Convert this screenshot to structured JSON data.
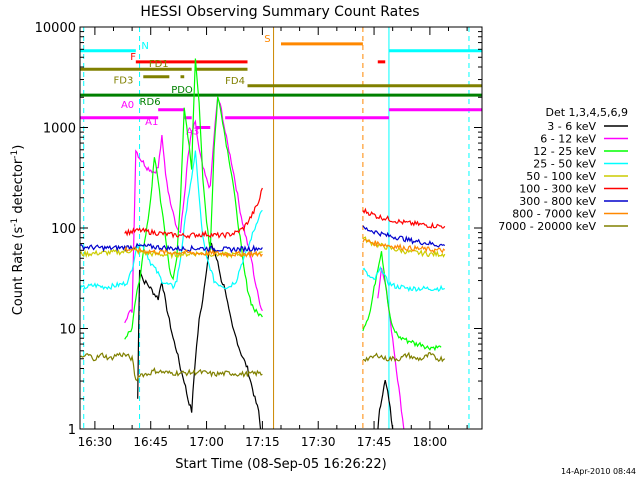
{
  "chart_data": {
    "type": "line",
    "title": "HESSI Observing Summary Count Rates",
    "xlabel": "Start Time (08-Sep-05 16:26:22)",
    "ylabel_main": "Count Rate (s",
    "ylabel_exp": "-1",
    "ylabel_tail": " detector",
    "ylabel_exp2": "-1",
    "ylabel_close": ")",
    "footer_date": "14-Apr-2010 08:44",
    "x_range_min": [
      0,
      108
    ],
    "y_range": [
      1,
      10000
    ],
    "y_scale": "log",
    "x_ticks": [
      {
        "min": 4,
        "label": "16:30"
      },
      {
        "min": 19,
        "label": "16:45"
      },
      {
        "min": 34,
        "label": "17:00"
      },
      {
        "min": 49,
        "label": "17:15"
      },
      {
        "min": 64,
        "label": "17:30"
      },
      {
        "min": 79,
        "label": "17:45"
      },
      {
        "min": 94,
        "label": "18:00"
      }
    ],
    "y_ticks": [
      {
        "value": 1,
        "label": "1"
      },
      {
        "value": 10,
        "label": "10"
      },
      {
        "value": 100,
        "label": "100"
      },
      {
        "value": 1000,
        "label": "1000"
      },
      {
        "value": 10000,
        "label": "10000"
      }
    ],
    "legend_title": "Det 1,3,4,5,6,9",
    "legend_placement": "right",
    "series": [
      {
        "name": "3 - 6 keV",
        "color": "#000000",
        "x": [
          15.5,
          16,
          17,
          18,
          19,
          20,
          21,
          22,
          23,
          24,
          25,
          26,
          27,
          28,
          29,
          30,
          31,
          32,
          33,
          34,
          35,
          36,
          37,
          38,
          39,
          40,
          41,
          42,
          43,
          45,
          47,
          48,
          48.5
        ],
        "y": [
          2,
          40,
          30,
          28,
          25,
          22,
          20,
          30,
          18,
          12,
          8,
          6,
          4,
          3,
          2,
          1.5,
          5,
          12,
          20,
          40,
          70,
          60,
          45,
          30,
          25,
          15,
          10,
          8,
          6,
          4,
          2,
          1.5,
          1
        ]
      },
      {
        "name": "3 - 6 keV",
        "color": "#000000",
        "x": [
          80,
          80.5,
          81,
          82,
          83,
          84
        ],
        "y": [
          1,
          1.5,
          2,
          3,
          2,
          1
        ]
      },
      {
        "name": "6 - 12 keV",
        "color": "#ff00ff",
        "x": [
          12,
          13,
          14,
          15,
          16,
          17,
          18,
          19,
          20,
          21,
          22,
          23,
          24,
          25,
          26,
          27,
          28,
          29,
          30,
          31,
          32,
          33,
          34,
          35,
          36,
          37,
          38,
          39,
          40,
          41,
          42,
          43,
          44,
          45,
          46,
          47,
          48,
          49
        ],
        "y": [
          12,
          14,
          15,
          600,
          500,
          450,
          400,
          380,
          360,
          400,
          800,
          350,
          200,
          150,
          100,
          90,
          200,
          500,
          900,
          1100,
          600,
          400,
          300,
          250,
          800,
          2000,
          1500,
          900,
          600,
          400,
          250,
          150,
          100,
          70,
          50,
          30,
          20,
          15
        ]
      },
      {
        "name": "6 - 12 keV",
        "color": "#ff00ff",
        "x": [
          80,
          81,
          82,
          83,
          84,
          85,
          86,
          87
        ],
        "y": [
          20,
          40,
          30,
          15,
          8,
          4,
          2,
          1
        ]
      },
      {
        "name": "12 - 25 keV",
        "color": "#00ff00",
        "x": [
          12,
          13,
          14,
          15,
          16,
          17,
          18,
          19,
          20,
          21,
          22,
          23,
          24,
          25,
          26,
          27,
          28,
          29,
          30,
          31,
          32,
          33,
          34,
          35,
          36,
          37,
          38,
          39,
          40,
          41,
          42,
          43,
          44,
          45,
          46,
          47,
          48,
          49
        ],
        "y": [
          8,
          9,
          10,
          20,
          30,
          60,
          100,
          200,
          500,
          300,
          150,
          80,
          40,
          30,
          50,
          200,
          1500,
          800,
          400,
          5000,
          1800,
          300,
          120,
          60,
          600,
          2000,
          1400,
          800,
          500,
          300,
          150,
          80,
          40,
          25,
          18,
          15,
          14,
          13
        ]
      },
      {
        "name": "12 - 25 keV",
        "color": "#00ff00",
        "x": [
          76,
          77,
          78,
          79,
          80,
          81,
          82,
          83,
          84,
          85,
          86,
          87,
          88,
          89,
          90,
          91,
          92,
          93,
          94,
          95,
          96,
          97
        ],
        "y": [
          10,
          12,
          15,
          25,
          40,
          60,
          30,
          15,
          10,
          9,
          8,
          8,
          7.5,
          7.5,
          7,
          7,
          7,
          6.5,
          6.5,
          6.5,
          6.5,
          6.5
        ]
      },
      {
        "name": "25 - 50 keV",
        "color": "#00ffff",
        "x": [
          0,
          2,
          4,
          6,
          8,
          10,
          12,
          13,
          14,
          15,
          16,
          17,
          18,
          19,
          20,
          21,
          22,
          23,
          24,
          25,
          26,
          27,
          28,
          29,
          30,
          31,
          32,
          33,
          34,
          35,
          36,
          37,
          38,
          39,
          40,
          41,
          42,
          43,
          44,
          45,
          46,
          47,
          48,
          49
        ],
        "y": [
          25,
          26,
          27,
          26,
          26,
          27,
          28,
          30,
          40,
          60,
          70,
          65,
          55,
          45,
          40,
          35,
          30,
          28,
          27,
          26,
          30,
          50,
          100,
          200,
          300,
          600,
          200,
          80,
          50,
          40,
          30,
          28,
          27,
          26,
          26,
          28,
          30,
          40,
          50,
          60,
          80,
          100,
          130,
          150
        ]
      },
      {
        "name": "25 - 50 keV",
        "color": "#00ffff",
        "x": [
          76,
          77,
          78,
          79,
          80,
          81,
          82,
          83,
          84,
          85,
          86,
          88,
          90,
          92,
          94,
          96,
          98
        ],
        "y": [
          40,
          35,
          32,
          30,
          35,
          40,
          32,
          28,
          27,
          26,
          26,
          25,
          25,
          25,
          25,
          25,
          25
        ]
      },
      {
        "name": "50 - 100 keV",
        "color": "#cccc00",
        "x": [
          0,
          4,
          8,
          12,
          14,
          16,
          18,
          20,
          24,
          28,
          32,
          36,
          40,
          44,
          48,
          49
        ],
        "y": [
          55,
          56,
          57,
          58,
          60,
          58,
          56,
          55,
          54,
          55,
          56,
          55,
          54,
          55,
          56,
          58
        ]
      },
      {
        "name": "50 - 100 keV",
        "color": "#cccc00",
        "x": [
          76,
          78,
          80,
          82,
          84,
          86,
          88,
          90,
          92,
          94,
          96,
          98
        ],
        "y": [
          80,
          72,
          68,
          65,
          62,
          60,
          58,
          57,
          56,
          55,
          55,
          55
        ]
      },
      {
        "name": "100 - 300 keV",
        "color": "#ff0000",
        "x": [
          12,
          14,
          16,
          18,
          20,
          22,
          24,
          26,
          28,
          30,
          32,
          34,
          36,
          38,
          40,
          42,
          44,
          46,
          48,
          49
        ],
        "y": [
          90,
          92,
          95,
          92,
          90,
          88,
          86,
          85,
          84,
          85,
          86,
          87,
          85,
          84,
          86,
          90,
          100,
          130,
          180,
          250
        ]
      },
      {
        "name": "100 - 300 keV",
        "color": "#ff0000",
        "x": [
          76,
          78,
          80,
          82,
          84,
          86,
          88,
          90,
          92,
          94,
          96,
          98
        ],
        "y": [
          150,
          140,
          130,
          125,
          120,
          115,
          112,
          110,
          108,
          106,
          105,
          104
        ]
      },
      {
        "name": "300 - 800 keV",
        "color": "#0000cc",
        "x": [
          0,
          4,
          8,
          12,
          16,
          20,
          24,
          28,
          32,
          36,
          40,
          44,
          48,
          49
        ],
        "y": [
          65,
          64,
          63,
          64,
          66,
          65,
          63,
          62,
          63,
          62,
          61,
          62,
          63,
          64
        ]
      },
      {
        "name": "300 - 800 keV",
        "color": "#0000cc",
        "x": [
          76,
          78,
          80,
          82,
          84,
          86,
          88,
          90,
          92,
          94,
          96,
          98
        ],
        "y": [
          100,
          95,
          90,
          85,
          82,
          80,
          76,
          74,
          72,
          70,
          68,
          67
        ]
      },
      {
        "name": "800 - 7000 keV",
        "color": "#ff8800",
        "x": [
          12,
          16,
          20,
          24,
          28,
          32,
          36,
          40,
          44,
          48,
          49
        ],
        "y": [
          62,
          60,
          58,
          57,
          57,
          56,
          56,
          55,
          55,
          55,
          55
        ]
      },
      {
        "name": "800 - 7000 keV",
        "color": "#ff8800",
        "x": [
          76,
          80,
          84,
          88,
          92,
          96,
          98
        ],
        "y": [
          75,
          70,
          66,
          63,
          62,
          60,
          60
        ]
      },
      {
        "name": "7000 - 20000 keV",
        "color": "#808000",
        "x": [
          0,
          2,
          4,
          6,
          8,
          10,
          12,
          14,
          15,
          16,
          18,
          20,
          24,
          28,
          32,
          36,
          40,
          44,
          48,
          49
        ],
        "y": [
          5,
          5.5,
          5,
          5.5,
          5,
          5.5,
          5.5,
          5,
          3,
          3.5,
          3.5,
          3.8,
          3.6,
          3.6,
          3.7,
          3.5,
          3.6,
          3.5,
          3.6,
          3.5
        ]
      },
      {
        "name": "7000 - 20000 keV",
        "color": "#808000",
        "x": [
          76,
          78,
          80,
          82,
          84,
          86,
          88,
          90,
          92,
          94,
          96,
          98
        ],
        "y": [
          5,
          5,
          5.5,
          5,
          5,
          5,
          5.5,
          5,
          5,
          5.5,
          5,
          5
        ]
      }
    ],
    "legend_entries": [
      {
        "label": "3 - 6 keV",
        "color": "#000000"
      },
      {
        "label": "6 - 12 keV",
        "color": "#ff00ff"
      },
      {
        "label": "12 - 25 keV",
        "color": "#00ff00"
      },
      {
        "label": "25 - 50 keV",
        "color": "#00ffff"
      },
      {
        "label": "50 - 100 keV",
        "color": "#cccc00"
      },
      {
        "label": "100 - 300 keV",
        "color": "#ff0000"
      },
      {
        "label": "300 - 800 keV",
        "color": "#0000cc"
      },
      {
        "label": "800 - 7000 keV",
        "color": "#ff8800"
      },
      {
        "label": "7000 - 20000 keV",
        "color": "#808000"
      }
    ],
    "flag_bars": [
      {
        "label": "N",
        "color": "#00ffff",
        "y": 5800,
        "segments": [
          [
            0,
            15
          ],
          [
            83,
            108
          ]
        ]
      },
      {
        "label": "S",
        "color": "#ff8800",
        "y": 6800,
        "segments": [
          [
            54,
            76
          ]
        ]
      },
      {
        "label": "F",
        "color": "#ff0000",
        "y": 4500,
        "segments": [
          [
            15,
            45
          ],
          [
            80,
            82
          ]
        ]
      },
      {
        "label": "FD1",
        "color": "#808000",
        "y": 3800,
        "segments": [
          [
            0,
            30
          ],
          [
            31,
            45
          ]
        ]
      },
      {
        "label": "FD3",
        "color": "#808000",
        "y": 3200,
        "segments": [
          [
            17,
            24
          ],
          [
            27,
            28
          ]
        ]
      },
      {
        "label": "FD4",
        "color": "#808000",
        "y": 2600,
        "segments": [
          [
            45,
            108
          ]
        ]
      },
      {
        "label": "RD6",
        "color": "#008000",
        "y": 2100,
        "segments": [
          [
            0,
            108
          ]
        ]
      },
      {
        "label": "PDO",
        "color": "#008000",
        "y": 2100,
        "segments": []
      },
      {
        "label": "A0",
        "color": "#ff00ff",
        "y": 1500,
        "segments": [
          [
            21,
            28
          ],
          [
            83,
            108
          ]
        ]
      },
      {
        "label": "A1",
        "color": "#ff00ff",
        "y": 1250,
        "segments": [
          [
            0,
            21
          ],
          [
            28,
            30
          ],
          [
            39,
            83
          ]
        ]
      },
      {
        "label": "A3",
        "color": "#ff00ff",
        "y": 1000,
        "segments": [
          [
            31,
            35
          ]
        ]
      }
    ],
    "vertical_markers": [
      {
        "x": 1,
        "color": "#00ffff",
        "style": "dashed"
      },
      {
        "x": 16,
        "color": "#00ffff",
        "style": "dashed"
      },
      {
        "x": 52,
        "color": "#cc8800",
        "style": "solid"
      },
      {
        "x": 76,
        "color": "#ff8800",
        "style": "dashed"
      },
      {
        "x": 83,
        "color": "#00ffff",
        "style": "solid"
      },
      {
        "x": 104.5,
        "color": "#00ffff",
        "style": "dashed"
      }
    ]
  }
}
